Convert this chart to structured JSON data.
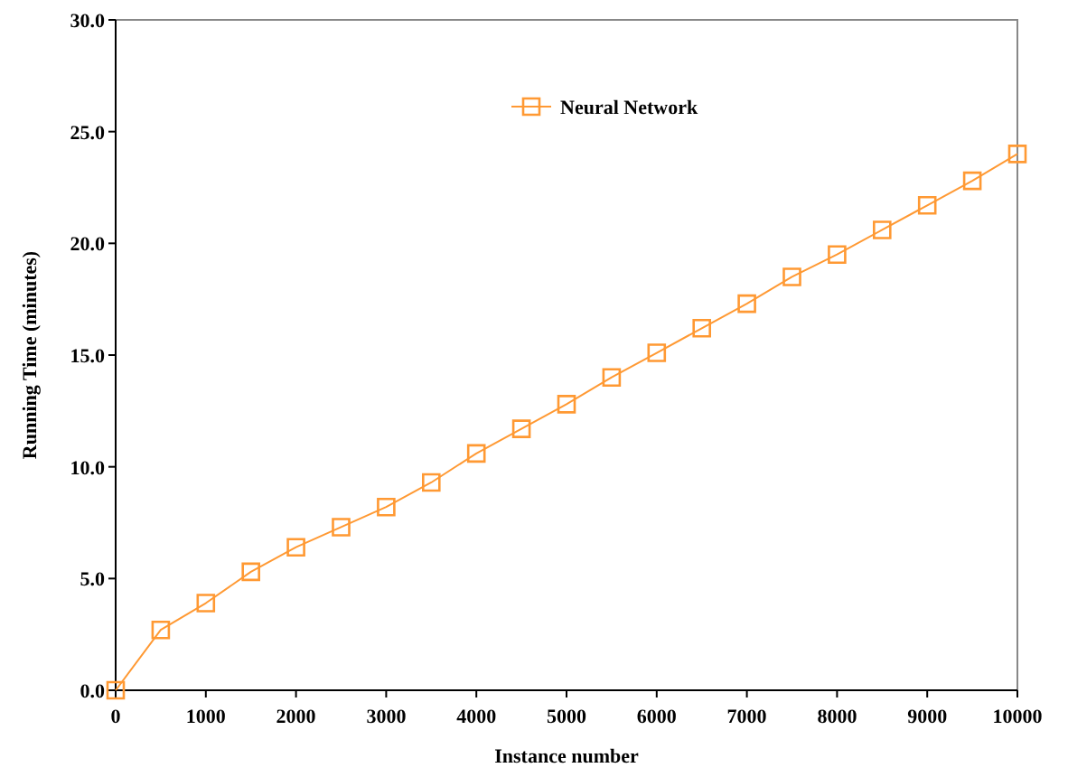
{
  "chart_data": {
    "type": "line",
    "xlabel": "Instance number",
    "ylabel": "Running Time (minutes)",
    "x": [
      0,
      500,
      1000,
      1500,
      2000,
      2500,
      3000,
      3500,
      4000,
      4500,
      5000,
      5500,
      6000,
      6500,
      7000,
      7500,
      8000,
      8500,
      9000,
      9500,
      10000
    ],
    "series": [
      {
        "name": "Neural Network",
        "color": "#ff9933",
        "values": [
          0.0,
          2.7,
          3.9,
          5.3,
          6.4,
          7.3,
          8.2,
          9.3,
          10.6,
          11.7,
          12.8,
          14.0,
          15.1,
          16.2,
          17.3,
          18.5,
          19.5,
          20.6,
          21.7,
          22.8,
          24.0
        ]
      }
    ],
    "xlim": [
      0,
      10000
    ],
    "xticks": [
      0,
      1000,
      2000,
      3000,
      4000,
      5000,
      6000,
      7000,
      8000,
      9000,
      10000
    ],
    "ylim": [
      0,
      30
    ],
    "yticks": [
      {
        "value": 0,
        "label": "0.0"
      },
      {
        "value": 5,
        "label": "5.0"
      },
      {
        "value": 10,
        "label": "10.0"
      },
      {
        "value": 15,
        "label": "15.0"
      },
      {
        "value": 20,
        "label": "20.0"
      },
      {
        "value": 25,
        "label": "25.0"
      },
      {
        "value": 30,
        "label": "30.0"
      }
    ],
    "grid": false,
    "legend": "top",
    "marker": "square",
    "line_style": "solid"
  }
}
